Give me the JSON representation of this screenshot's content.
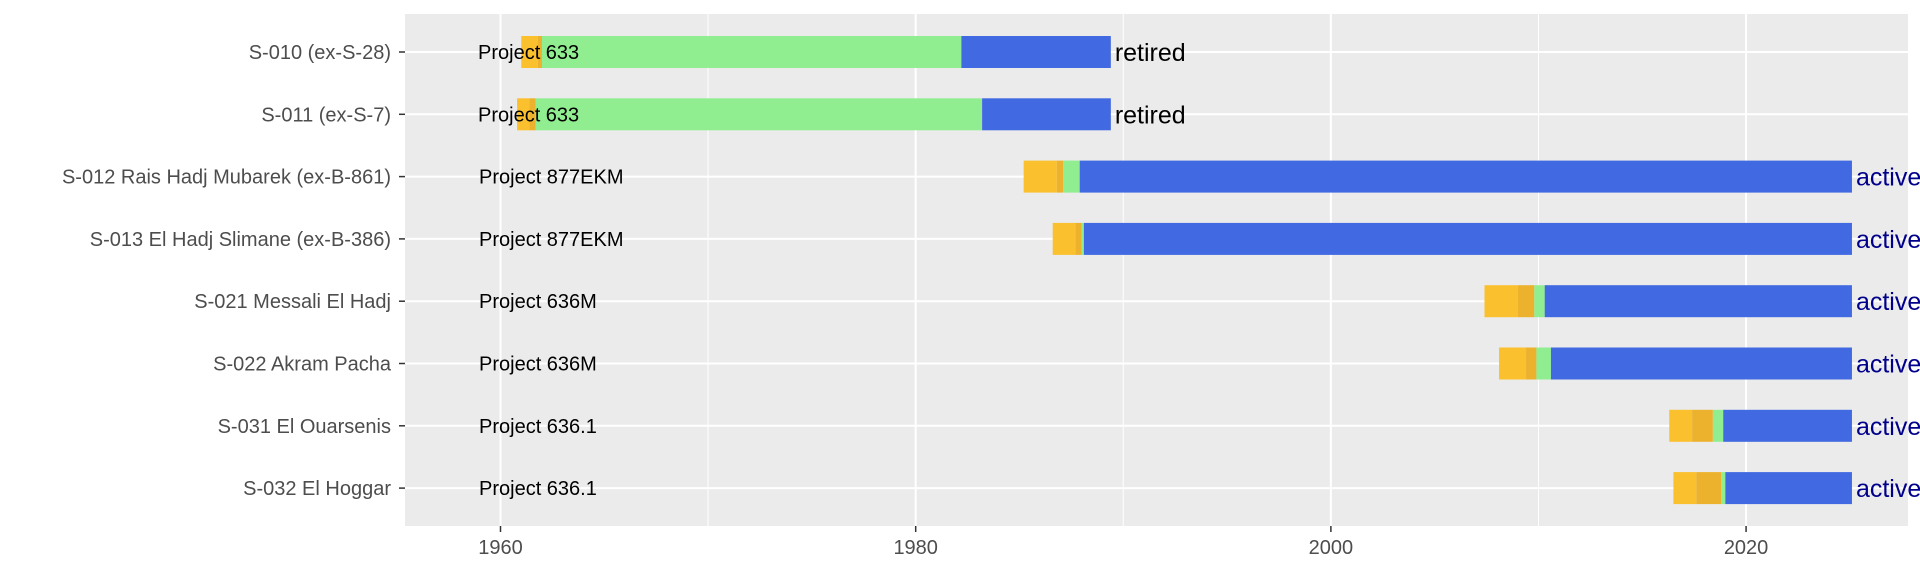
{
  "chart_data": {
    "type": "bar",
    "orientation": "horizontal-timeline",
    "title": "",
    "xlabel": "",
    "ylabel": "",
    "xlim": [
      1955.5,
      1977.3
    ],
    "xlim_note": "",
    "x_ticks": [
      1960,
      1980,
      2000,
      2020
    ],
    "grid": true,
    "legend": "none",
    "colors": {
      "panel": "#ebebeb",
      "grid": "#ffffff",
      "ordered": "#fbc02d",
      "laid_down": "#ecb22e",
      "launched": "#90ee90",
      "commissioned": "#4169e1",
      "retired_text": "#000000",
      "active_text": "#00008b"
    },
    "series": [
      {
        "name": "S-010  (ex-S-28)",
        "class": "Project 633",
        "segments": [
          {
            "stage": "ordered",
            "start": 1961.0,
            "end": 1961.8
          },
          {
            "stage": "laid_down",
            "start": 1961.8,
            "end": 1962.0
          },
          {
            "stage": "launched",
            "start": 1962.0,
            "end": 1982.2
          },
          {
            "stage": "commissioned",
            "start": 1982.2,
            "end": 1989.4
          }
        ],
        "status": "retired"
      },
      {
        "name": "S-011  (ex-S-7)",
        "class": "Project 633",
        "segments": [
          {
            "stage": "ordered",
            "start": 1960.8,
            "end": 1961.4
          },
          {
            "stage": "laid_down",
            "start": 1961.4,
            "end": 1961.7
          },
          {
            "stage": "launched",
            "start": 1961.7,
            "end": 1983.2
          },
          {
            "stage": "commissioned",
            "start": 1983.2,
            "end": 1989.4
          }
        ],
        "status": "retired"
      },
      {
        "name": "S-012 Rais Hadj Mubarek (ex-B-861)",
        "class": "Project 877EKM",
        "segments": [
          {
            "stage": "ordered",
            "start": 1985.2,
            "end": 1986.8
          },
          {
            "stage": "laid_down",
            "start": 1986.8,
            "end": 1987.1
          },
          {
            "stage": "launched",
            "start": 1987.1,
            "end": 1987.9
          },
          {
            "stage": "commissioned",
            "start": 1987.9,
            "end": 2025.1
          }
        ],
        "status": "active"
      },
      {
        "name": "S-013 El Hadj Slimane (ex-B-386)",
        "class": "Project 877EKM",
        "segments": [
          {
            "stage": "ordered",
            "start": 1986.6,
            "end": 1987.7
          },
          {
            "stage": "laid_down",
            "start": 1987.7,
            "end": 1988.0
          },
          {
            "stage": "launched",
            "start": 1988.0,
            "end": 1988.1
          },
          {
            "stage": "commissioned",
            "start": 1988.1,
            "end": 2025.1
          }
        ],
        "status": "active"
      },
      {
        "name": "S-021 Messali El Hadj",
        "class": "Project 636M",
        "segments": [
          {
            "stage": "ordered",
            "start": 2007.4,
            "end": 2009.0
          },
          {
            "stage": "laid_down",
            "start": 2009.0,
            "end": 2009.8
          },
          {
            "stage": "launched",
            "start": 2009.8,
            "end": 2010.3
          },
          {
            "stage": "commissioned",
            "start": 2010.3,
            "end": 2025.1
          }
        ],
        "status": "active"
      },
      {
        "name": "S-022 Akram Pacha",
        "class": "Project 636M",
        "segments": [
          {
            "stage": "ordered",
            "start": 2008.1,
            "end": 2009.4
          },
          {
            "stage": "laid_down",
            "start": 2009.4,
            "end": 2009.9
          },
          {
            "stage": "launched",
            "start": 2009.9,
            "end": 2010.6
          },
          {
            "stage": "commissioned",
            "start": 2010.6,
            "end": 2025.1
          }
        ],
        "status": "active"
      },
      {
        "name": "S-031 El Ouarsenis",
        "class": "Project 636.1",
        "segments": [
          {
            "stage": "ordered",
            "start": 2016.3,
            "end": 2017.4
          },
          {
            "stage": "laid_down",
            "start": 2017.4,
            "end": 2018.4
          },
          {
            "stage": "launched",
            "start": 2018.4,
            "end": 2018.9
          },
          {
            "stage": "commissioned",
            "start": 2018.9,
            "end": 2025.1
          }
        ],
        "status": "active"
      },
      {
        "name": "S-032 El Hoggar",
        "class": "Project 636.1",
        "segments": [
          {
            "stage": "ordered",
            "start": 2016.5,
            "end": 2017.6
          },
          {
            "stage": "laid_down",
            "start": 2017.6,
            "end": 2018.8
          },
          {
            "stage": "launched",
            "start": 2018.8,
            "end": 2019.0
          },
          {
            "stage": "commissioned",
            "start": 2019.0,
            "end": 2025.1
          }
        ],
        "status": "active"
      }
    ]
  }
}
